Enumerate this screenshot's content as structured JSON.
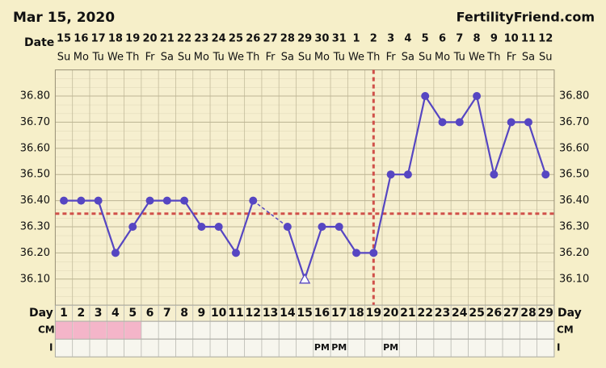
{
  "chart_data": {
    "type": "line",
    "title": "Mar 15, 2020",
    "site": "FertilityFriend.com",
    "date_label": "Date",
    "dates": [
      "15",
      "16",
      "17",
      "18",
      "19",
      "20",
      "21",
      "22",
      "23",
      "24",
      "25",
      "26",
      "27",
      "28",
      "29",
      "30",
      "31",
      "1",
      "2",
      "3",
      "4",
      "5",
      "6",
      "7",
      "8",
      "9",
      "10",
      "11",
      "12"
    ],
    "weekdays": [
      "Su",
      "Mo",
      "Tu",
      "We",
      "Th",
      "Fr",
      "Sa",
      "Su",
      "Mo",
      "Tu",
      "We",
      "Th",
      "Fr",
      "Sa",
      "Su",
      "Mo",
      "Tu",
      "We",
      "Th",
      "Fr",
      "Sa",
      "Su",
      "Mo",
      "Tu",
      "We",
      "Th",
      "Fr",
      "Sa",
      "Su"
    ],
    "day_label": "Day",
    "categories": [
      1,
      2,
      3,
      4,
      5,
      6,
      7,
      8,
      9,
      10,
      11,
      12,
      13,
      14,
      15,
      16,
      17,
      18,
      19,
      20,
      21,
      22,
      23,
      24,
      25,
      26,
      27,
      28,
      29
    ],
    "series": [
      {
        "color": "#5646c2",
        "values": [
          36.4,
          36.4,
          36.4,
          36.2,
          36.3,
          36.4,
          36.4,
          36.4,
          36.3,
          36.3,
          36.2,
          36.4,
          null,
          36.3,
          36.1,
          36.3,
          36.3,
          36.2,
          36.2,
          36.5,
          36.5,
          36.8,
          36.7,
          36.7,
          36.8,
          36.5,
          36.7,
          36.7,
          36.5
        ],
        "markers": [
          "circle",
          "circle",
          "circle",
          "circle",
          "circle",
          "circle",
          "circle",
          "circle",
          "circle",
          "circle",
          "circle",
          "circle",
          null,
          "circle",
          "open-triangle",
          "circle",
          "circle",
          "circle",
          "circle",
          "circle",
          "circle",
          "circle",
          "circle",
          "circle",
          "circle",
          "circle",
          "circle",
          "circle",
          "circle"
        ]
      }
    ],
    "ylim": [
      36.0,
      36.9
    ],
    "yticks": [
      {
        "value": 36.1,
        "label": "36.10"
      },
      {
        "value": 36.2,
        "label": "36.20"
      },
      {
        "value": 36.3,
        "label": "36.30"
      },
      {
        "value": 36.4,
        "label": "36.40"
      },
      {
        "value": 36.5,
        "label": "36.50"
      },
      {
        "value": 36.6,
        "label": "36.60"
      },
      {
        "value": 36.7,
        "label": "36.70"
      },
      {
        "value": 36.8,
        "label": "36.80"
      }
    ],
    "grid": true,
    "coverline": 36.35,
    "ovulation_day": 19,
    "reference_color": "#d0504a",
    "cm_label": "CM",
    "cm": [
      "#f4b5c9",
      "#f4b5c9",
      "#f4b5c9",
      "#f4b5c9",
      "#f4b5c9",
      null,
      null,
      null,
      null,
      null,
      null,
      null,
      null,
      null,
      null,
      null,
      null,
      null,
      null,
      null,
      null,
      null,
      null,
      null,
      null,
      null,
      null,
      null,
      null
    ],
    "intercourse_label": "I",
    "intercourse": [
      null,
      null,
      null,
      null,
      null,
      null,
      null,
      null,
      null,
      null,
      null,
      null,
      null,
      null,
      null,
      "PM",
      "PM",
      null,
      null,
      "PM",
      null,
      null,
      null,
      null,
      null,
      null,
      null,
      null,
      null
    ]
  }
}
